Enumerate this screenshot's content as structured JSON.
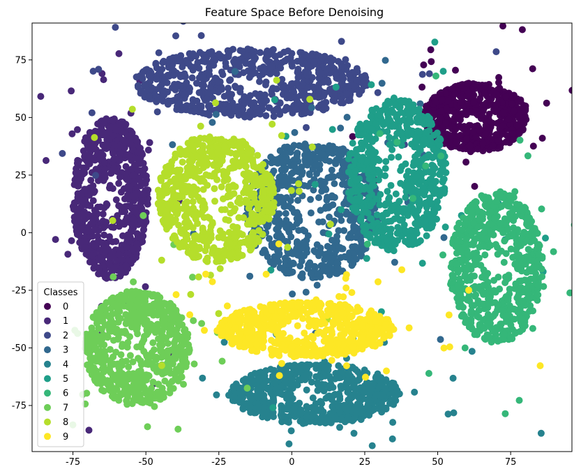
{
  "chart_data": {
    "type": "scatter",
    "title": "Feature Space Before Denoising",
    "xlabel": "",
    "ylabel": "",
    "xlim": [
      -89,
      96
    ],
    "ylim": [
      -95,
      91
    ],
    "xticks": [
      -75,
      -50,
      -25,
      0,
      25,
      50,
      75
    ],
    "yticks": [
      -75,
      -50,
      -25,
      0,
      25,
      50,
      75
    ],
    "grid": false,
    "legend": {
      "title": "Classes",
      "position": "lower-left"
    },
    "series": [
      {
        "name": "0",
        "color": "#440154",
        "cluster": {
          "cx": 63,
          "cy": 50,
          "rx": 18,
          "ry": 15
        },
        "points": 650
      },
      {
        "name": "1",
        "color": "#482878",
        "cluster": {
          "cx": -62,
          "cy": 15,
          "rx": 13,
          "ry": 35
        },
        "points": 700
      },
      {
        "name": "2",
        "color": "#3e4989",
        "cluster": {
          "cx": -14,
          "cy": 65,
          "rx": 40,
          "ry": 15
        },
        "points": 750
      },
      {
        "name": "3",
        "color": "#31688e",
        "cluster": {
          "cx": 7,
          "cy": 10,
          "rx": 23,
          "ry": 30
        },
        "points": 700
      },
      {
        "name": "4",
        "color": "#26828e",
        "cluster": {
          "cx": 8,
          "cy": -70,
          "rx": 29,
          "ry": 13
        },
        "points": 650
      },
      {
        "name": "5",
        "color": "#1f9e89",
        "cluster": {
          "cx": 36,
          "cy": 25,
          "rx": 17,
          "ry": 33
        },
        "points": 650
      },
      {
        "name": "6",
        "color": "#35b779",
        "cluster": {
          "cx": 70,
          "cy": -15,
          "rx": 16,
          "ry": 33
        },
        "points": 650
      },
      {
        "name": "7",
        "color": "#6ece58",
        "cluster": {
          "cx": -53,
          "cy": -50,
          "rx": 18,
          "ry": 25
        },
        "points": 700
      },
      {
        "name": "8",
        "color": "#b5de2b",
        "cluster": {
          "cx": -26,
          "cy": 15,
          "rx": 20,
          "ry": 28
        },
        "points": 650
      },
      {
        "name": "9",
        "color": "#fde725",
        "cluster": {
          "cx": 5,
          "cy": -42,
          "rx": 30,
          "ry": 12
        },
        "points": 650
      }
    ]
  }
}
